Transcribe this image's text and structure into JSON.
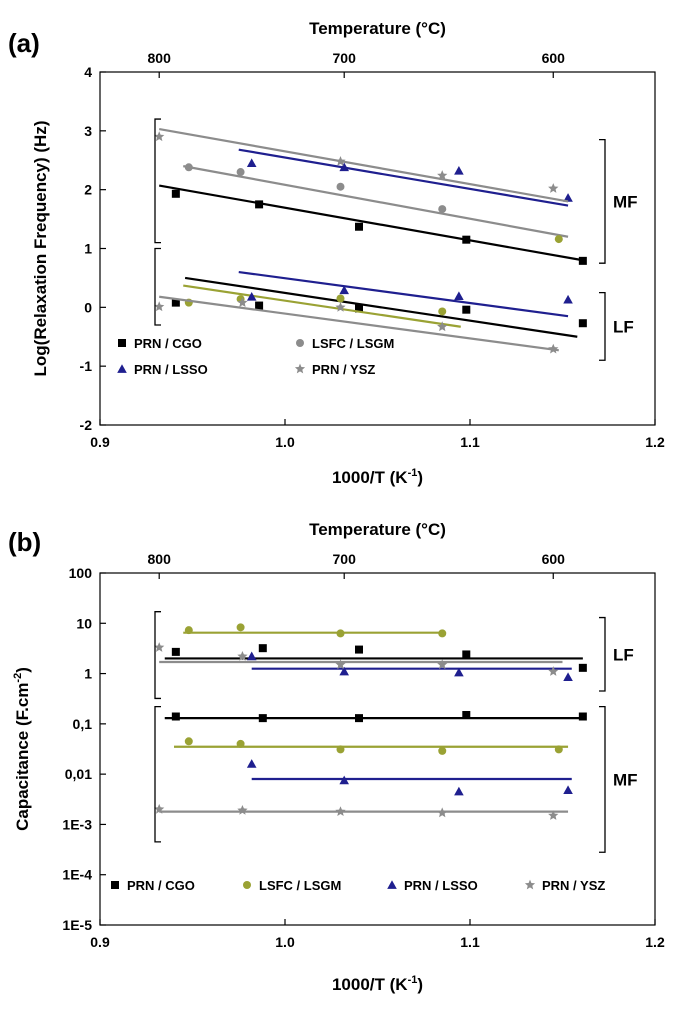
{
  "chart_data": [
    {
      "type": "scatter",
      "panel": "(a)",
      "xlabel": "1000/T (K",
      "xlabel_sup": "-1",
      "xlabel_end": ")",
      "ylabel": "Log(Relaxation Frequency)  (Hz)",
      "top_label": "Temperature (°C)",
      "xlim": [
        0.9,
        1.2
      ],
      "ylim": [
        -2,
        4
      ],
      "x_ticks": [
        0.9,
        1.0,
        1.1,
        1.2
      ],
      "x_tick_labels": [
        "0.9",
        "1.0",
        "1.1",
        "1.2"
      ],
      "y_ticks": [
        -2,
        -1,
        0,
        1,
        2,
        3,
        4
      ],
      "y_tick_labels": [
        "-2",
        "-1",
        "0",
        "1",
        "2",
        "3",
        "4"
      ],
      "top_ticks": [
        {
          "x": 0.932,
          "label": "800"
        },
        {
          "x": 1.032,
          "label": "700"
        },
        {
          "x": 1.145,
          "label": "600"
        }
      ],
      "groups": [
        {
          "label": "MF",
          "ymin": 0.75,
          "ymax": 2.85,
          "bracket_left_ymin": 1.1,
          "bracket_left_ymax": 3.2
        },
        {
          "label": "LF",
          "ymin": -0.9,
          "ymax": 0.25,
          "bracket_left_ymin": -0.3,
          "bracket_left_ymax": 1.0
        }
      ],
      "legend": {
        "placement": "bottom-left",
        "entries": [
          {
            "name": "PRN / CGO",
            "series": "PRN / CGO"
          },
          {
            "name": "LSFC / LSGM",
            "series": "LSFC / LSGM"
          },
          {
            "name": "PRN / LSSO",
            "series": "PRN / LSSO"
          },
          {
            "name": "PRN / YSZ",
            "series": "PRN / YSZ"
          }
        ]
      },
      "series": [
        {
          "name": "PRN / CGO",
          "marker": "square",
          "color": "#000000",
          "points": [
            [
              0.941,
              1.93
            ],
            [
              0.986,
              1.75
            ],
            [
              1.04,
              1.37
            ],
            [
              1.098,
              1.15
            ],
            [
              1.161,
              0.79
            ],
            [
              0.941,
              0.08
            ],
            [
              0.986,
              0.03
            ],
            [
              1.04,
              -0.02
            ],
            [
              1.098,
              -0.04
            ],
            [
              1.161,
              -0.27
            ]
          ],
          "fits": [
            [
              [
                0.932,
                2.07
              ],
              [
                1.161,
                0.8
              ]
            ],
            [
              [
                0.946,
                0.5
              ],
              [
                1.158,
                -0.5
              ]
            ]
          ]
        },
        {
          "name": "LSFC / LSGM",
          "marker": "circle",
          "color": "#8c8c8c",
          "color2": "#9aa234",
          "points": [
            [
              0.948,
              2.38
            ],
            [
              0.976,
              2.3
            ],
            [
              1.03,
              2.05
            ],
            [
              1.085,
              1.67
            ],
            [
              1.148,
              1.16
            ],
            [
              0.948,
              0.08
            ],
            [
              0.976,
              0.14
            ],
            [
              1.03,
              0.15
            ],
            [
              1.085,
              -0.07
            ]
          ],
          "fits": [
            [
              [
                0.945,
                2.4
              ],
              [
                1.153,
                1.2
              ]
            ],
            [
              [
                0.945,
                0.37
              ],
              [
                1.095,
                -0.33
              ]
            ]
          ]
        },
        {
          "name": "PRN / LSSO",
          "marker": "triangle",
          "color": "#1f1f8f",
          "points": [
            [
              0.982,
              2.45
            ],
            [
              1.032,
              2.38
            ],
            [
              1.094,
              2.32
            ],
            [
              1.153,
              1.86
            ],
            [
              0.982,
              0.18
            ],
            [
              1.032,
              0.29
            ],
            [
              1.094,
              0.19
            ],
            [
              1.153,
              0.13
            ]
          ],
          "fits": [
            [
              [
                0.975,
                2.68
              ],
              [
                1.153,
                1.73
              ]
            ],
            [
              [
                0.975,
                0.6
              ],
              [
                1.153,
                -0.15
              ]
            ]
          ]
        },
        {
          "name": "PRN / YSZ",
          "marker": "star",
          "color": "#8c8c8c",
          "points": [
            [
              0.932,
              2.9
            ],
            [
              1.03,
              2.48
            ],
            [
              1.085,
              2.24
            ],
            [
              1.145,
              2.02
            ],
            [
              0.932,
              0.01
            ],
            [
              0.977,
              0.08
            ],
            [
              1.03,
              0.0
            ],
            [
              1.085,
              -0.33
            ],
            [
              1.145,
              -0.71
            ]
          ],
          "fits": [
            [
              [
                0.932,
                3.03
              ],
              [
                1.153,
                1.8
              ]
            ],
            [
              [
                0.932,
                0.18
              ],
              [
                1.148,
                -0.73
              ]
            ]
          ]
        }
      ]
    },
    {
      "type": "scatter",
      "panel": "(b)",
      "xlabel": "1000/T (K",
      "xlabel_sup": "-1",
      "xlabel_end": ")",
      "ylabel": "Capacitance (F.cm",
      "ylabel_sup": "-2",
      "ylabel_end": ")",
      "top_label": "Temperature (°C)",
      "y_scale": "log",
      "xlim": [
        0.9,
        1.2
      ],
      "ylim": [
        1e-05,
        100
      ],
      "x_ticks": [
        0.9,
        1.0,
        1.1,
        1.2
      ],
      "x_tick_labels": [
        "0.9",
        "1.0",
        "1.1",
        "1.2"
      ],
      "y_ticks": [
        1e-05,
        0.0001,
        0.001,
        0.01,
        0.1,
        1,
        10,
        100
      ],
      "y_tick_labels": [
        "1E-5",
        "1E-4",
        "1E-3",
        "0,01",
        "0,1",
        "1",
        "10",
        "100"
      ],
      "top_ticks": [
        {
          "x": 0.932,
          "label": "800"
        },
        {
          "x": 1.032,
          "label": "700"
        },
        {
          "x": 1.145,
          "label": "600"
        }
      ],
      "groups": [
        {
          "label": "LF",
          "ymin": 0.45,
          "ymax": 13,
          "bracket_left_ymin": 0.32,
          "bracket_left_ymax": 17
        },
        {
          "label": "MF",
          "ymin": 0.00028,
          "ymax": 0.22,
          "bracket_left_ymin": 0.00045,
          "bracket_left_ymax": 0.22
        }
      ],
      "legend": {
        "placement": "bottom",
        "entries": [
          {
            "name": "PRN / CGO",
            "series": "PRN / CGO"
          },
          {
            "name": "LSFC / LSGM",
            "series": "LSFC / LSGM"
          },
          {
            "name": "PRN / LSSO",
            "series": "PRN / LSSO"
          },
          {
            "name": "PRN / YSZ",
            "series": "PRN / YSZ"
          }
        ]
      },
      "series": [
        {
          "name": "PRN / CGO",
          "marker": "square",
          "color": "#000000",
          "points": [
            [
              0.941,
              2.7
            ],
            [
              0.988,
              3.2
            ],
            [
              1.04,
              3.0
            ],
            [
              1.098,
              2.4
            ],
            [
              1.161,
              1.3
            ],
            [
              0.941,
              0.14
            ],
            [
              0.988,
              0.13
            ],
            [
              1.04,
              0.13
            ],
            [
              1.098,
              0.15
            ],
            [
              1.161,
              0.14
            ]
          ],
          "fits": [
            [
              [
                0.935,
                2.0
              ],
              [
                1.161,
                2.0
              ]
            ],
            [
              [
                0.935,
                0.13
              ],
              [
                1.161,
                0.13
              ]
            ]
          ]
        },
        {
          "name": "LSFC / LSGM",
          "marker": "circle",
          "color": "#9aa234",
          "points": [
            [
              0.948,
              7.3
            ],
            [
              0.976,
              8.3
            ],
            [
              1.03,
              6.3
            ],
            [
              1.085,
              6.3
            ],
            [
              0.948,
              0.045
            ],
            [
              0.976,
              0.04
            ],
            [
              1.03,
              0.031
            ],
            [
              1.085,
              0.029
            ],
            [
              1.148,
              0.031
            ]
          ],
          "fits": [
            [
              [
                0.945,
                6.5
              ],
              [
                1.085,
                6.5
              ]
            ],
            [
              [
                0.94,
                0.035
              ],
              [
                1.153,
                0.035
              ]
            ]
          ]
        },
        {
          "name": "PRN / LSSO",
          "marker": "triangle",
          "color": "#1f1f8f",
          "points": [
            [
              0.982,
              2.2
            ],
            [
              1.032,
              1.1
            ],
            [
              1.094,
              1.05
            ],
            [
              1.153,
              0.85
            ],
            [
              0.982,
              0.016
            ],
            [
              1.032,
              0.0075
            ],
            [
              1.094,
              0.0045
            ],
            [
              1.153,
              0.0048
            ]
          ],
          "fits": [
            [
              [
                0.982,
                1.25
              ],
              [
                1.155,
                1.25
              ]
            ],
            [
              [
                0.982,
                0.008
              ],
              [
                1.155,
                0.008
              ]
            ]
          ]
        },
        {
          "name": "PRN / YSZ",
          "marker": "star",
          "color": "#8c8c8c",
          "points": [
            [
              0.932,
              3.3
            ],
            [
              0.977,
              2.2
            ],
            [
              1.03,
              1.5
            ],
            [
              1.085,
              1.5
            ],
            [
              1.145,
              1.1
            ],
            [
              0.932,
              0.002
            ],
            [
              0.977,
              0.0019
            ],
            [
              1.03,
              0.0018
            ],
            [
              1.085,
              0.0017
            ],
            [
              1.145,
              0.0015
            ]
          ],
          "fits": [
            [
              [
                0.932,
                1.7
              ],
              [
                1.15,
                1.7
              ]
            ],
            [
              [
                0.932,
                0.0018
              ],
              [
                1.153,
                0.0018
              ]
            ]
          ]
        }
      ]
    }
  ]
}
